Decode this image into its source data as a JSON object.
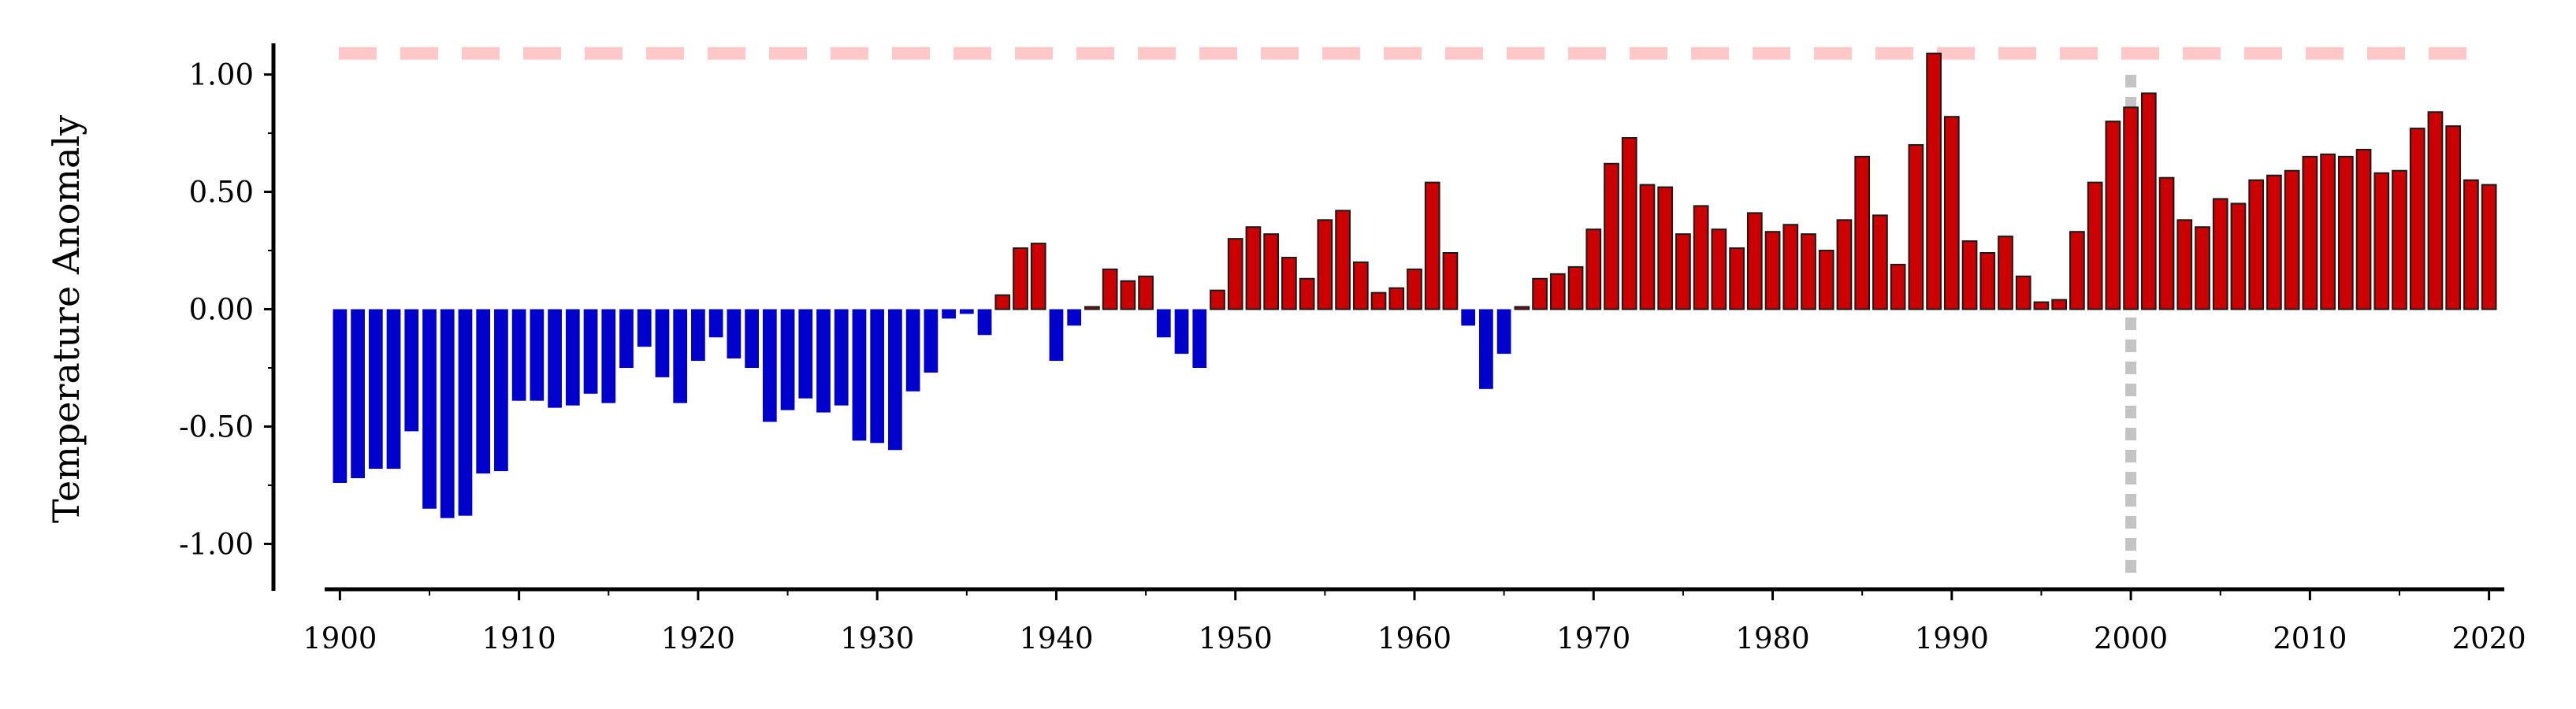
{
  "chart_data": {
    "type": "bar",
    "title": "",
    "xlabel": "",
    "ylabel": "Temperature Anomaly",
    "x": [
      1900,
      1901,
      1902,
      1903,
      1904,
      1905,
      1906,
      1907,
      1908,
      1909,
      1910,
      1911,
      1912,
      1913,
      1914,
      1915,
      1916,
      1917,
      1918,
      1919,
      1920,
      1921,
      1922,
      1923,
      1924,
      1925,
      1926,
      1927,
      1928,
      1929,
      1930,
      1931,
      1932,
      1933,
      1934,
      1935,
      1936,
      1937,
      1938,
      1939,
      1940,
      1941,
      1942,
      1943,
      1944,
      1945,
      1946,
      1947,
      1948,
      1949,
      1950,
      1951,
      1952,
      1953,
      1954,
      1955,
      1956,
      1957,
      1958,
      1959,
      1960,
      1961,
      1962,
      1963,
      1964,
      1965,
      1966,
      1967,
      1968,
      1969,
      1970,
      1971,
      1972,
      1973,
      1974,
      1975,
      1976,
      1977,
      1978,
      1979,
      1980,
      1981,
      1982,
      1983,
      1984,
      1985,
      1986,
      1987,
      1988,
      1989,
      1990,
      1991,
      1992,
      1993,
      1994,
      1995,
      1996,
      1997,
      1998,
      1999,
      2000,
      2001,
      2002,
      2003,
      2004,
      2005,
      2006,
      2007,
      2008,
      2009,
      2010,
      2011,
      2012,
      2013,
      2014,
      2015,
      2016,
      2017,
      2018,
      2019,
      2020
    ],
    "values": [
      -0.74,
      -0.72,
      -0.68,
      -0.68,
      -0.52,
      -0.85,
      -0.89,
      -0.88,
      -0.7,
      -0.69,
      -0.39,
      -0.39,
      -0.42,
      -0.41,
      -0.36,
      -0.4,
      -0.25,
      -0.16,
      -0.29,
      -0.4,
      -0.22,
      -0.12,
      -0.21,
      -0.25,
      -0.48,
      -0.43,
      -0.38,
      -0.44,
      -0.41,
      -0.56,
      -0.57,
      -0.6,
      -0.35,
      -0.27,
      -0.04,
      -0.02,
      -0.11,
      0.06,
      0.26,
      0.28,
      -0.22,
      -0.07,
      0.01,
      0.17,
      0.12,
      0.14,
      -0.12,
      -0.19,
      -0.25,
      0.08,
      0.3,
      0.35,
      0.32,
      0.22,
      0.13,
      0.38,
      0.42,
      0.2,
      0.07,
      0.09,
      0.17,
      0.54,
      0.24,
      -0.07,
      -0.34,
      -0.19,
      0.01,
      0.13,
      0.15,
      0.18,
      0.34,
      0.62,
      0.73,
      0.53,
      0.52,
      0.32,
      0.44,
      0.34,
      0.26,
      0.41,
      0.33,
      0.36,
      0.32,
      0.25,
      0.38,
      0.65,
      0.4,
      0.19,
      0.7,
      1.09,
      0.82,
      0.29,
      0.24,
      0.31,
      0.14,
      0.03,
      0.04,
      0.33,
      0.54,
      0.8,
      0.86,
      0.92,
      0.56,
      0.38,
      0.35,
      0.47,
      0.45,
      0.55,
      0.57,
      0.59,
      0.65,
      0.66,
      0.65,
      0.68,
      0.58,
      0.59,
      0.77,
      0.84,
      0.78,
      0.55,
      0.53
    ],
    "ylim": [
      -1.2,
      1.2
    ],
    "yticks": [
      -1.0,
      -0.5,
      0.0,
      0.5,
      1.0
    ],
    "ytick_labels": [
      "-1.00",
      "-0.50",
      "0.00",
      "0.50",
      "1.00"
    ],
    "xlim": [
      1899.5,
      2020.5
    ],
    "xticks": [
      1900,
      1910,
      1920,
      1930,
      1940,
      1950,
      1960,
      1970,
      1980,
      1990,
      2000,
      2010,
      2020
    ],
    "xtick_labels": [
      "1900",
      "1910",
      "1920",
      "1930",
      "1940",
      "1950",
      "1960",
      "1970",
      "1980",
      "1990",
      "2000",
      "2010",
      "2020"
    ],
    "reference_lines": [
      {
        "orientation": "horizontal",
        "value": 1.09,
        "style": "dashed",
        "color": "#ffc8c8"
      },
      {
        "orientation": "vertical",
        "value": 2000,
        "style": "dotted",
        "color": "#c4c4c4"
      }
    ],
    "colors": {
      "positive": "#cc0000",
      "negative": "#0000cc",
      "positive_edge": "#1a1a1a"
    },
    "grid": false,
    "legend": "none"
  }
}
